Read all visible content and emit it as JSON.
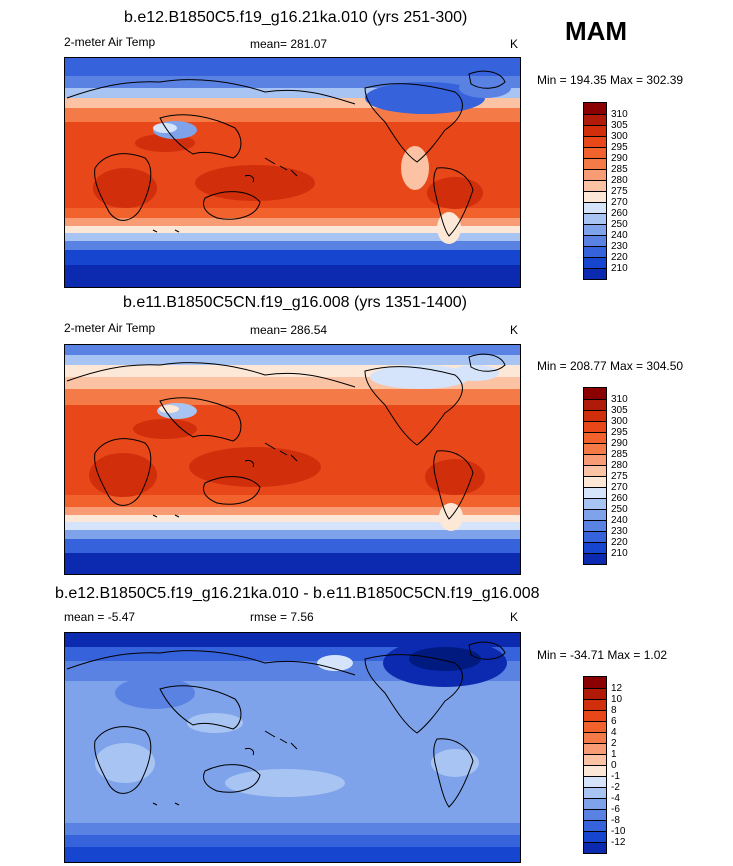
{
  "season": "MAM",
  "panels": [
    {
      "title": "b.e12.B1850C5.f19_g16.21ka.010 (yrs 251-300)",
      "left_label": "2-meter Air Temp",
      "mid_label": "mean= 281.07",
      "units": "K",
      "minmax": "Min = 194.35 Max = 302.39",
      "colorbar": {
        "labels": [
          "310",
          "305",
          "300",
          "295",
          "290",
          "285",
          "280",
          "275",
          "270",
          "260",
          "250",
          "240",
          "230",
          "220",
          "210"
        ],
        "colors": [
          "#8b0000",
          "#b01a08",
          "#d12e0c",
          "#e8471a",
          "#f2622c",
          "#f47b48",
          "#f79c74",
          "#fbc2a3",
          "#fde7d6",
          "#d6e4fb",
          "#a8c4f2",
          "#7ea3ea",
          "#5982e3",
          "#3662db",
          "#1645d0",
          "#0b2ab0"
        ]
      }
    },
    {
      "title": "b.e11.B1850C5CN.f19_g16.008 (yrs 1351-1400)",
      "left_label": "2-meter Air Temp",
      "mid_label": "mean= 286.54",
      "units": "K",
      "minmax": "Min = 208.77 Max = 304.50",
      "colorbar": {
        "labels": [
          "310",
          "305",
          "300",
          "295",
          "290",
          "285",
          "280",
          "275",
          "270",
          "260",
          "250",
          "240",
          "230",
          "220",
          "210"
        ],
        "colors": [
          "#8b0000",
          "#b01a08",
          "#d12e0c",
          "#e8471a",
          "#f2622c",
          "#f47b48",
          "#f79c74",
          "#fbc2a3",
          "#fde7d6",
          "#d6e4fb",
          "#a8c4f2",
          "#7ea3ea",
          "#5982e3",
          "#3662db",
          "#1645d0",
          "#0b2ab0"
        ]
      }
    },
    {
      "title": "b.e12.B1850C5.f19_g16.21ka.010 - b.e11.B1850C5CN.f19_g16.008",
      "left_label": "mean =  -5.47",
      "mid_label": "rmse =   7.56",
      "units": "K",
      "minmax": "Min = -34.71 Max =   1.02",
      "colorbar": {
        "labels": [
          "12",
          "10",
          "8",
          "6",
          "4",
          "2",
          "1",
          "0",
          "-1",
          "-2",
          "-4",
          "-6",
          "-8",
          "-10",
          "-12"
        ],
        "colors": [
          "#8b0000",
          "#b01a08",
          "#d12e0c",
          "#e8471a",
          "#f2622c",
          "#f47b48",
          "#f79c74",
          "#fbc2a3",
          "#fde7d6",
          "#d6e4fb",
          "#a8c4f2",
          "#7ea3ea",
          "#5982e3",
          "#3662db",
          "#1645d0",
          "#0b2ab0"
        ]
      }
    }
  ]
}
